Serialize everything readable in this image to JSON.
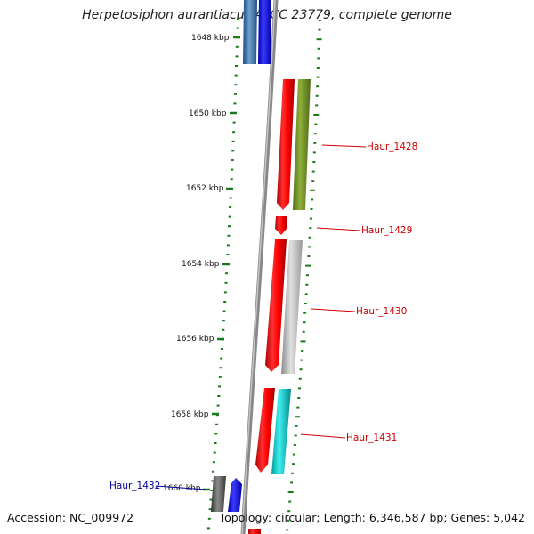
{
  "title": "Herpetosiphon aurantiacus ATCC 23779, complete genome",
  "footer": {
    "accession": "Accession: NC_009972",
    "summary": "Topology: circular; Length: 6,346,587 bp; Genes: 5,042"
  },
  "ruler": {
    "ticks": [
      "1648 kbp",
      "1650 kbp",
      "1652 kbp",
      "1654 kbp",
      "1656 kbp",
      "1658 kbp",
      "1660 kbp"
    ]
  },
  "genes": [
    {
      "label": "Haur_1428",
      "color": "#cc0000"
    },
    {
      "label": "Haur_1429",
      "color": "#cc0000"
    },
    {
      "label": "Haur_1430",
      "color": "#cc0000"
    },
    {
      "label": "Haur_1431",
      "color": "#cc0000"
    },
    {
      "label": "Haur_1432",
      "color": "#000099"
    }
  ],
  "colors": {
    "red_feature": "#ff0000",
    "olive_feature": "#6b8e23",
    "gray_feature": "#bdbdbd",
    "cyan_feature": "#00cccc",
    "blue_feature": "#0000ff",
    "steel_feature": "#3a6ea5",
    "dark_feature": "#555555",
    "ruler_green": "#1a7a1a",
    "backbone": "#888888"
  }
}
